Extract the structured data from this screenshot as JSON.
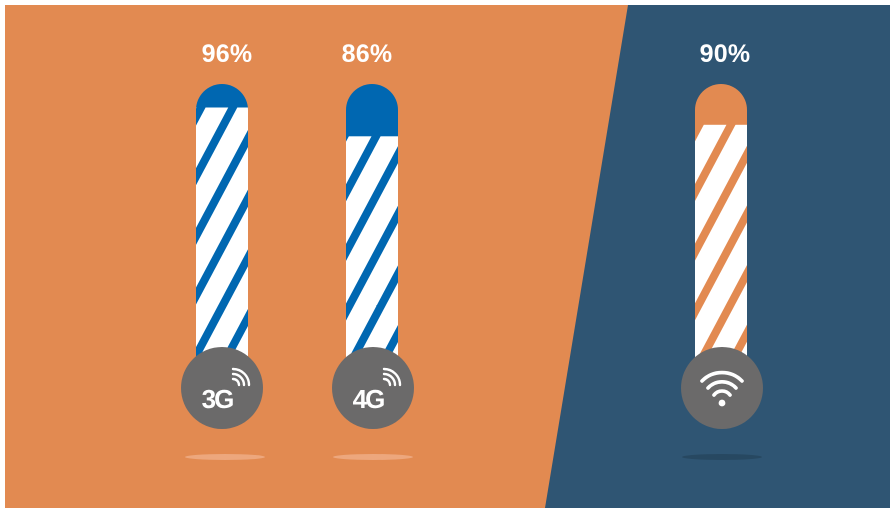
{
  "colors": {
    "orange_bg": "#E28A51",
    "navy_bg": "#2F5573",
    "blue_fill": "#0067B1",
    "orange_fill": "#E28A51",
    "gauge_white": "#FFFFFF",
    "badge_gray": "#6B6A6A",
    "shadow_light": "#EDA77D",
    "shadow_dark": "#274861"
  },
  "chart_data": {
    "type": "bar",
    "categories": [
      "3G",
      "4G",
      "Wi-Fi"
    ],
    "values": [
      96,
      86,
      90
    ],
    "value_labels": [
      "96%",
      "86%",
      "90%"
    ],
    "ylim": [
      0,
      100
    ],
    "icons": [
      "3g-signal-icon",
      "4g-signal-icon",
      "wifi-icon"
    ]
  }
}
